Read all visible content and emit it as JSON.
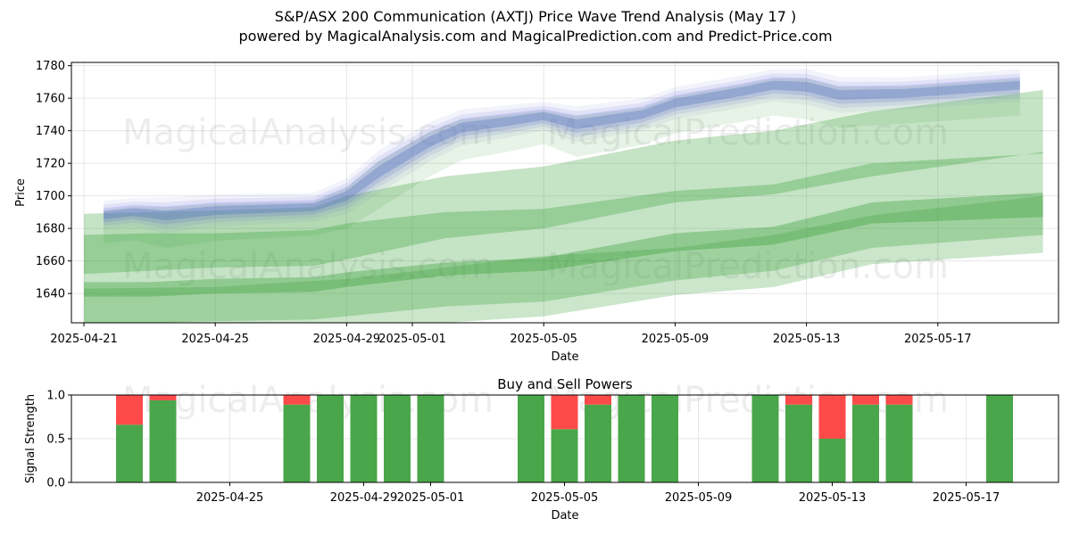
{
  "header": {
    "title_line1": "S&P/ASX 200 Communication (AXTJ) Price Wave Trend Analysis (May 17 )",
    "title_line2": "powered by MagicalAnalysis.com and MagicalPrediction.com and Predict-Price.com"
  },
  "watermarks": [
    "MagicalAnalysis.com",
    "MagicalPrediction.com"
  ],
  "chart_data": [
    {
      "type": "area",
      "title": "",
      "xlabel": "Date",
      "ylabel": "Price",
      "ylim": [
        1622,
        1782
      ],
      "yticks": [
        1640,
        1660,
        1680,
        1700,
        1720,
        1740,
        1760,
        1780
      ],
      "xticks": [
        {
          "day": 0,
          "label": "2025-04-21"
        },
        {
          "day": 4,
          "label": "2025-04-25"
        },
        {
          "day": 8,
          "label": "2025-04-29"
        },
        {
          "day": 10,
          "label": "2025-05-01"
        },
        {
          "day": 14,
          "label": "2025-05-05"
        },
        {
          "day": 18,
          "label": "2025-05-09"
        },
        {
          "day": 22,
          "label": "2025-05-13"
        },
        {
          "day": 26,
          "label": "2025-05-17"
        }
      ],
      "grid": true,
      "green_bands": [
        {
          "name": "upper band",
          "x": [
            0,
            2,
            4,
            7,
            8,
            11,
            14,
            18,
            21,
            24,
            29.2
          ],
          "upper": [
            1689,
            1690,
            1691,
            1693,
            1700,
            1712,
            1718,
            1734,
            1740,
            1752,
            1765
          ],
          "lower": [
            1652,
            1654,
            1656,
            1657,
            1661,
            1674,
            1680,
            1696,
            1701,
            1712,
            1727
          ]
        },
        {
          "name": "middle band",
          "x": [
            0,
            2,
            4,
            7,
            8,
            11,
            14,
            18,
            21,
            24,
            29.2
          ],
          "upper": [
            1676,
            1677,
            1677,
            1679,
            1683,
            1690,
            1692,
            1703,
            1707,
            1720,
            1726
          ]
        },
        {
          "name": "middle band lower",
          "x": [
            0,
            2,
            4,
            7,
            8,
            11,
            14,
            18,
            21,
            24,
            29.2
          ],
          "lower": [
            1621,
            1622,
            1623,
            1624,
            1626,
            1632,
            1635,
            1648,
            1654,
            1668,
            1676
          ]
        },
        {
          "name": "lower band",
          "x": [
            0,
            2,
            4,
            7,
            8,
            11,
            14,
            18,
            21,
            24,
            29.2
          ],
          "upper": [
            1647,
            1647,
            1649,
            1650,
            1653,
            1659,
            1662,
            1677,
            1681,
            1696,
            1702
          ],
          "lower": [
            1638,
            1638,
            1640,
            1641,
            1644,
            1651,
            1654,
            1666,
            1670,
            1683,
            1687
          ]
        },
        {
          "name": "lower fan",
          "x": [
            0,
            4,
            8,
            11,
            14,
            18,
            21,
            24,
            29.2
          ],
          "upper": [
            1643,
            1644,
            1649,
            1656,
            1663,
            1668,
            1676,
            1688,
            1700
          ],
          "lower": [
            1620,
            1620,
            1620,
            1622,
            1626,
            1639,
            1644,
            1658,
            1665
          ]
        }
      ],
      "wave_band": {
        "name": "price wave",
        "x": [
          0.6,
          1.5,
          2.5,
          4,
          7,
          8,
          9,
          10.5,
          11.5,
          13,
          14,
          15,
          17,
          18,
          20,
          21,
          22,
          23,
          25,
          28.5
        ],
        "center": [
          1688,
          1690,
          1688,
          1691,
          1693,
          1700,
          1715,
          1733,
          1742,
          1746,
          1749,
          1744,
          1750,
          1757,
          1764,
          1768,
          1767,
          1762,
          1763,
          1768
        ],
        "width": [
          8,
          8,
          10,
          9,
          8,
          10,
          12,
          11,
          10,
          9,
          8,
          10,
          9,
          9,
          9,
          9,
          10,
          10,
          9,
          9
        ]
      }
    },
    {
      "type": "bar",
      "title": "Buy and Sell Powers",
      "xlabel": "Date",
      "ylabel": "Signal Strength",
      "ylim": [
        0,
        1.0
      ],
      "yticks": [
        "0.0",
        "0.5",
        "1.0"
      ],
      "xticks": [
        {
          "day": 3,
          "label": "2025-04-25"
        },
        {
          "day": 7,
          "label": "2025-04-29"
        },
        {
          "day": 9,
          "label": "2025-05-01"
        },
        {
          "day": 13,
          "label": "2025-05-05"
        },
        {
          "day": 17,
          "label": "2025-05-09"
        },
        {
          "day": 21,
          "label": "2025-05-13"
        },
        {
          "day": 25,
          "label": "2025-05-17"
        }
      ],
      "series": [
        {
          "name": "Buy",
          "color": "#4aa64a",
          "days": [
            0,
            1,
            5,
            6,
            7,
            8,
            9,
            12,
            13,
            14,
            15,
            16,
            19,
            20,
            21,
            22,
            23,
            26
          ],
          "values": [
            0.66,
            0.94,
            0.89,
            1.0,
            1.0,
            1.0,
            1.0,
            1.0,
            0.61,
            0.89,
            1.0,
            1.0,
            1.0,
            0.89,
            0.5,
            0.89,
            0.89,
            1.0
          ]
        },
        {
          "name": "Sell",
          "color": "#ff4a4a",
          "days": [
            0,
            1,
            5,
            6,
            7,
            8,
            9,
            12,
            13,
            14,
            15,
            16,
            19,
            20,
            21,
            22,
            23,
            26
          ],
          "values": [
            0.34,
            0.06,
            0.11,
            0.0,
            0.0,
            0.0,
            0.0,
            0.0,
            0.39,
            0.11,
            0.0,
            0.0,
            0.0,
            0.11,
            0.5,
            0.11,
            0.11,
            0.0
          ]
        }
      ]
    }
  ]
}
